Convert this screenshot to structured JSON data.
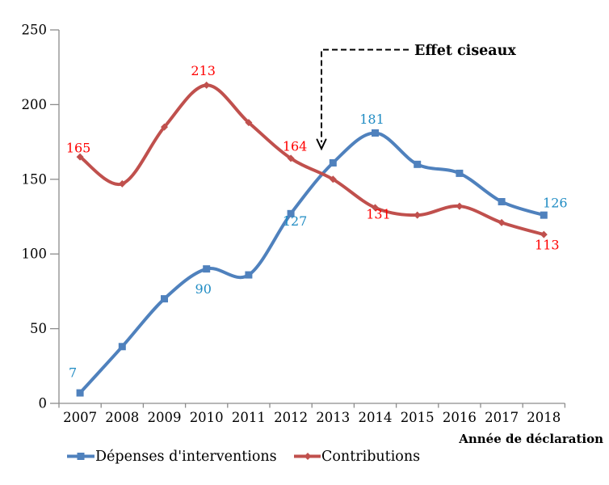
{
  "chart_data": {
    "type": "line",
    "title": "",
    "xlabel": "Année de déclaration",
    "ylabel": "",
    "x": [
      2007,
      2008,
      2009,
      2010,
      2011,
      2012,
      2013,
      2014,
      2015,
      2016,
      2017,
      2018
    ],
    "ylim": [
      0,
      250
    ],
    "yticks": [
      0,
      50,
      100,
      150,
      200,
      250
    ],
    "grid": false,
    "legend_position": "bottom",
    "series": [
      {
        "name": "Dépenses d'interventions",
        "color": "#4F81BD",
        "label_color": "#1E8BC3",
        "marker": "square",
        "values": [
          7,
          38,
          70,
          90,
          86,
          127,
          161,
          181,
          160,
          154,
          135,
          126
        ],
        "labeled_points": [
          {
            "x": 2007,
            "label": "7"
          },
          {
            "x": 2010,
            "label": "90"
          },
          {
            "x": 2012,
            "label": "127"
          },
          {
            "x": 2014,
            "label": "181"
          },
          {
            "x": 2018,
            "label": "126"
          }
        ]
      },
      {
        "name": "Contributions",
        "color": "#C0504D",
        "label_color": "#FF0000",
        "marker": "diamond",
        "values": [
          165,
          147,
          185,
          213,
          188,
          164,
          150,
          131,
          126,
          132,
          121,
          113
        ],
        "labeled_points": [
          {
            "x": 2007,
            "label": "165"
          },
          {
            "x": 2010,
            "label": "213"
          },
          {
            "x": 2012,
            "label": "164"
          },
          {
            "x": 2014,
            "label": "131"
          },
          {
            "x": 2018,
            "label": "113"
          }
        ]
      }
    ],
    "annotation": {
      "text": "Effet ciseaux"
    }
  }
}
